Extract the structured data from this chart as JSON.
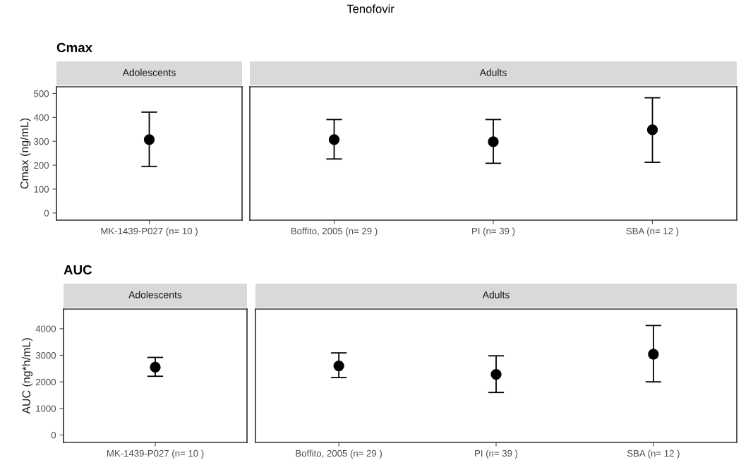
{
  "chart_data": [
    {
      "type": "scatter",
      "title": "Adolescents",
      "subtitle": "Cmax",
      "annotations": [
        "Tenofovir"
      ],
      "ylabel": "Cmax (ng/mL)",
      "categories": [
        "MK-1439-P027 (n= 10 )"
      ],
      "values": [
        307
      ],
      "errors": [
        [
          195,
          422
        ]
      ],
      "color": "#000000",
      "marker": "circle",
      "ylim": [
        -30,
        528
      ],
      "yticks": [
        0,
        100,
        200,
        300,
        400,
        500
      ]
    },
    {
      "type": "scatter",
      "title": "Adults",
      "categories": [
        "Boffito, 2005 (n= 29 )",
        "PI (n= 39 )",
        "SBA (n= 12 )"
      ],
      "values": [
        307,
        298,
        348
      ],
      "errors": [
        [
          226,
          391
        ],
        [
          208,
          391
        ],
        [
          212,
          482
        ]
      ],
      "color": "#000000",
      "marker": "circle",
      "ylim": [
        -30,
        528
      ],
      "tick_labels": "x"
    },
    {
      "type": "scatter",
      "title": "Adolescents",
      "subtitle": "AUC",
      "ylabel": "AUC (ng*h/mL)",
      "categories": [
        "MK-1439-P027 (n= 10 )"
      ],
      "values": [
        2550
      ],
      "errors": [
        [
          2210,
          2920
        ]
      ],
      "color": "#000000",
      "marker": "circle",
      "ylim": [
        -280,
        4740
      ],
      "yticks": [
        0,
        1000,
        2000,
        3000,
        4000
      ]
    },
    {
      "type": "scatter",
      "title": "Adults",
      "categories": [
        "Boffito, 2005 (n= 29 )",
        "PI (n= 39 )",
        "SBA (n= 12 )"
      ],
      "values": [
        2600,
        2280,
        3040
      ],
      "errors": [
        [
          2160,
          3090
        ],
        [
          1600,
          2980
        ],
        [
          2000,
          4120
        ]
      ],
      "color": "#000000",
      "marker": "circle",
      "ylim": [
        -280,
        4740
      ],
      "tick_labels": "x"
    }
  ]
}
